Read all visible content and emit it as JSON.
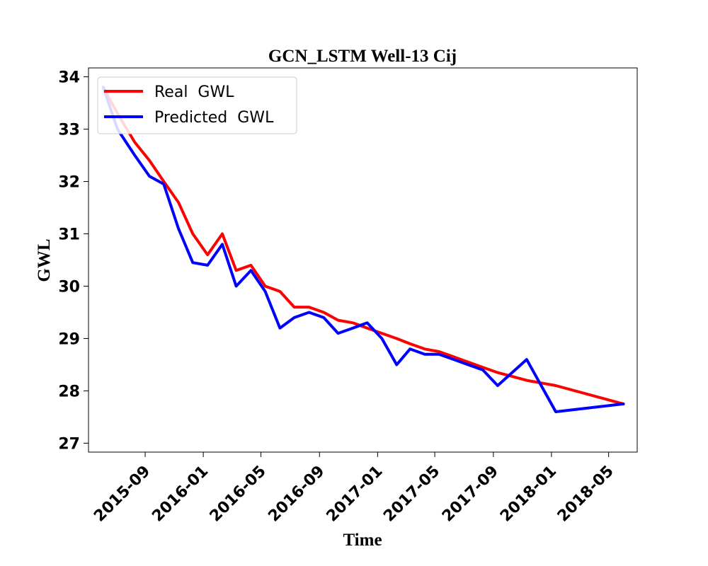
{
  "chart_data": {
    "type": "line",
    "title": "GCN_LSTM Well-13 Cij",
    "xlabel": "Time",
    "ylabel": "GWL",
    "x_axis_type": "date",
    "xlim": [
      "2015-05-05",
      "2018-06-30"
    ],
    "ylim": [
      26.83,
      34.17
    ],
    "x_ticks": [
      "2015-09-01",
      "2016-01-01",
      "2016-05-01",
      "2016-09-01",
      "2017-01-01",
      "2017-05-01",
      "2017-09-01",
      "2018-01-01",
      "2018-05-01"
    ],
    "x_tick_labels": [
      "2015-09",
      "2016-01",
      "2016-05",
      "2016-09",
      "2017-01",
      "2017-05",
      "2017-09",
      "2018-01",
      "2018-05"
    ],
    "y_ticks": [
      27,
      28,
      29,
      30,
      31,
      32,
      33,
      34
    ],
    "y_tick_labels": [
      "27",
      "28",
      "29",
      "30",
      "31",
      "32",
      "33",
      "34"
    ],
    "grid": false,
    "legend_position": "upper left",
    "x": [
      "2015-06-05",
      "2015-07-05",
      "2015-08-10",
      "2015-09-10",
      "2015-10-10",
      "2015-11-10",
      "2015-12-10",
      "2016-01-10",
      "2016-02-10",
      "2016-03-10",
      "2016-04-10",
      "2016-05-10",
      "2016-06-10",
      "2016-07-10",
      "2016-08-10",
      "2016-09-10",
      "2016-10-10",
      "2016-11-10",
      "2016-12-10",
      "2017-01-10",
      "2017-02-10",
      "2017-03-10",
      "2017-04-10",
      "2017-05-10",
      "2017-06-10",
      "2017-07-10",
      "2017-08-10",
      "2017-09-10",
      "2017-11-10",
      "2018-01-10",
      "2018-06-01"
    ],
    "series": [
      {
        "name": "Real  GWL",
        "color": "#ff0000",
        "values": [
          33.8,
          33.3,
          32.75,
          32.4,
          32.0,
          31.6,
          31.0,
          30.6,
          31.0,
          30.3,
          30.4,
          30.0,
          29.9,
          29.6,
          29.6,
          29.5,
          29.35,
          29.3,
          29.2,
          29.1,
          29.0,
          28.9,
          28.8,
          28.75,
          28.65,
          28.55,
          28.45,
          28.35,
          28.2,
          28.1,
          27.75
        ]
      },
      {
        "name": "Predicted  GWL",
        "color": "#0000ff",
        "values": [
          33.8,
          33.0,
          32.5,
          32.1,
          31.95,
          31.1,
          30.45,
          30.4,
          30.8,
          30.0,
          30.3,
          29.9,
          29.2,
          29.4,
          29.5,
          29.4,
          29.1,
          29.2,
          29.3,
          29.0,
          28.5,
          28.8,
          28.7,
          28.7,
          28.6,
          28.5,
          28.4,
          28.1,
          28.6,
          27.6,
          27.75
        ]
      }
    ]
  }
}
